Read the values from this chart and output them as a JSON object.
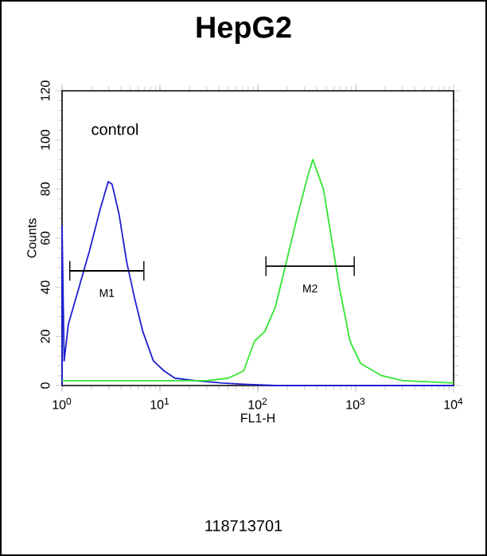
{
  "chart_data": {
    "type": "line",
    "title": "HepG2",
    "xlabel": "FL1-H",
    "ylabel": "Counts",
    "log": "x",
    "xlim": [
      1,
      10000
    ],
    "ylim": [
      0,
      120
    ],
    "xticks": [
      {
        "value": 1,
        "label": "10$^{0}$"
      },
      {
        "value": 10,
        "label": "10$^{1}$"
      },
      {
        "value": 100,
        "label": "10$^{2}$"
      },
      {
        "value": 1000,
        "label": "10$^{3}$"
      },
      {
        "value": 10000,
        "label": "10$^{4}$"
      }
    ],
    "yticks": [
      0,
      20,
      40,
      60,
      80,
      100,
      120
    ],
    "grid": false,
    "marker": "none",
    "line_style": "solid",
    "series": [
      {
        "color": "#1f1fd0",
        "x": [
          1,
          1,
          1.05,
          1.16,
          1.49,
          1.91,
          2.46,
          2.96,
          3.24,
          3.81,
          4.59,
          5.55,
          6.68,
          8.57,
          11.0,
          14.2,
          23.3,
          43.6,
          71.8,
          151,
          413,
          1440,
          10000
        ],
        "values": [
          0,
          65,
          10,
          25,
          40,
          55,
          72,
          83,
          82,
          70,
          50,
          35,
          22,
          10,
          6,
          3,
          2,
          1,
          0.5,
          0,
          0,
          0,
          0
        ]
      },
      {
        "color": "#33e633",
        "x": [
          1,
          3,
          10,
          30,
          50,
          71.8,
          92.2,
          118,
          151,
          195,
          250,
          322,
          365,
          413,
          468,
          565,
          681,
          875,
          1122,
          1849,
          3050,
          10000
        ],
        "values": [
          2,
          2,
          2,
          2,
          3,
          6,
          18,
          22,
          32,
          50,
          68,
          85,
          92,
          86,
          80,
          60,
          40,
          18,
          9,
          4,
          2,
          1
        ]
      },
      {
        "type": "line",
        "color": "#000000",
        "x": [
          1.2,
          6.85
        ],
        "values": [
          46.7,
          46.7
        ],
        "errors": [
          4,
          4
        ]
      },
      {
        "type": "line",
        "color": "#000000",
        "x": [
          121,
          966
        ],
        "values": [
          48.6,
          48.6
        ],
        "errors": [
          4,
          4
        ]
      }
    ],
    "annotations": [
      "control",
      "118713701",
      "M1",
      "M2"
    ]
  }
}
